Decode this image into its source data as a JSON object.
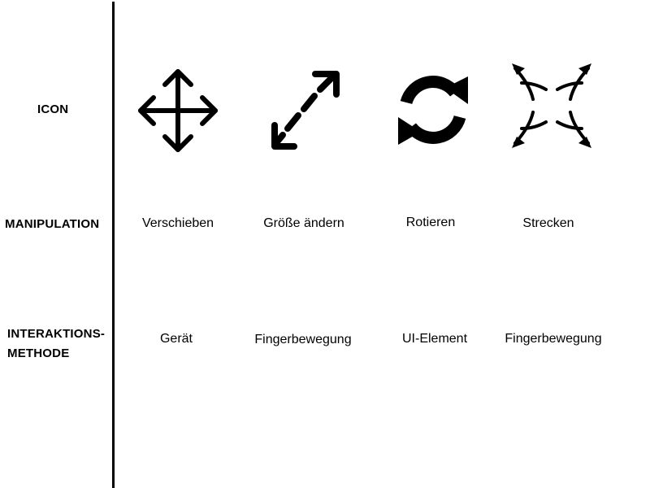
{
  "rows": {
    "icon": {
      "label": "ICON"
    },
    "manipulation": {
      "label": "MANIPULATION"
    },
    "interaction": {
      "label_line1": "INTERAKTIONS-",
      "label_line2": "METHODE"
    }
  },
  "columns": [
    {
      "icon": "move-icon",
      "manipulation": "Verschieben",
      "interaction": "Gerät"
    },
    {
      "icon": "resize-diagonal-icon",
      "manipulation": "Größe ändern",
      "interaction": "Fingerbewegung"
    },
    {
      "icon": "rotate-icon",
      "manipulation": "Rotieren",
      "interaction": "UI-Element"
    },
    {
      "icon": "stretch-icon",
      "manipulation": "Strecken",
      "interaction": "Fingerbewegung"
    }
  ]
}
